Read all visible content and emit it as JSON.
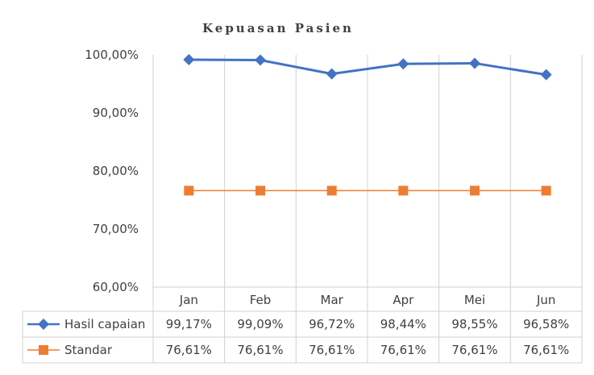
{
  "chart_data": {
    "type": "line",
    "title": "Kepuasan Pasien",
    "categories": [
      "Jan",
      "Feb",
      "Mar",
      "Apr",
      "Mei",
      "Jun"
    ],
    "ylim": [
      0.6,
      1.0
    ],
    "yticks": [
      1.0,
      0.9,
      0.8,
      0.7,
      0.6
    ],
    "ytick_labels": [
      "100,00%",
      "90,00%",
      "80,00%",
      "70,00%",
      "60,00%"
    ],
    "grid": {
      "vertical": true,
      "horizontal": false
    },
    "legend": "data-table",
    "series": [
      {
        "name": "Hasil capaian",
        "marker": "diamond",
        "color": "#4472C4",
        "values": [
          0.9917,
          0.9909,
          0.9672,
          0.9844,
          0.9855,
          0.9658
        ],
        "labels": [
          "99,17%",
          "99,09%",
          "96,72%",
          "98,44%",
          "98,55%",
          "96,58%"
        ]
      },
      {
        "name": "Standar",
        "marker": "square",
        "color": "#ED7D31",
        "values": [
          0.7661,
          0.7661,
          0.7661,
          0.7661,
          0.7661,
          0.7661
        ],
        "labels": [
          "76,61%",
          "76,61%",
          "76,61%",
          "76,61%",
          "76,61%",
          "76,61%"
        ]
      }
    ]
  }
}
